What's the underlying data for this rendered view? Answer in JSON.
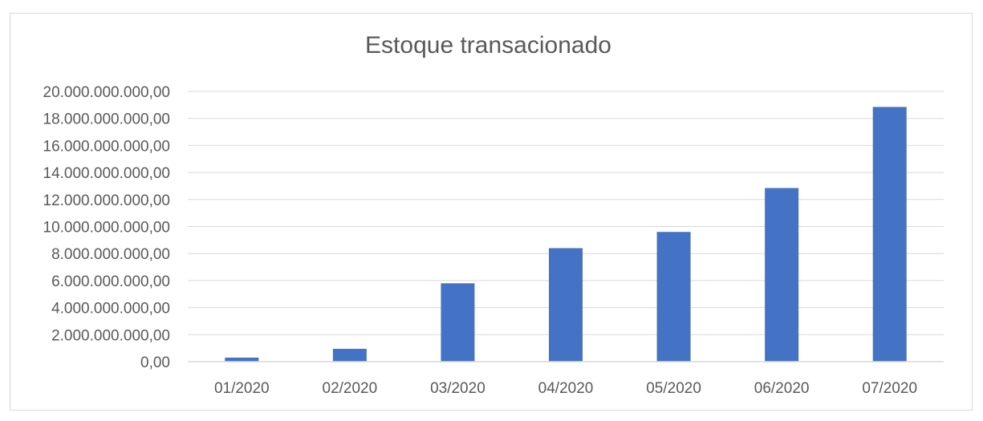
{
  "chart_data": {
    "type": "bar",
    "title": "Estoque transacionado",
    "xlabel": "",
    "ylabel": "",
    "categories": [
      "01/2020",
      "02/2020",
      "03/2020",
      "04/2020",
      "05/2020",
      "06/2020",
      "07/2020"
    ],
    "values": [
      300000000,
      950000000,
      5800000000,
      8400000000,
      9600000000,
      12850000000,
      18850000000
    ],
    "ylim": [
      0,
      20000000000
    ],
    "yticks": [
      0,
      2000000000,
      4000000000,
      6000000000,
      8000000000,
      10000000000,
      12000000000,
      14000000000,
      16000000000,
      18000000000,
      20000000000
    ],
    "ytick_labels": [
      "0,00",
      "2.000.000.000,00",
      "4.000.000.000,00",
      "6.000.000.000,00",
      "8.000.000.000,00",
      "10.000.000.000,00",
      "12.000.000.000,00",
      "14.000.000.000,00",
      "16.000.000.000,00",
      "18.000.000.000,00",
      "20.000.000.000,00"
    ],
    "grid": true,
    "legend": "none",
    "bar_color": "#4472c4",
    "grid_color": "#d9d9d9"
  }
}
